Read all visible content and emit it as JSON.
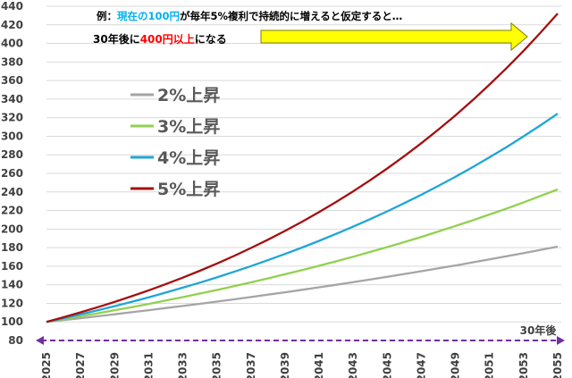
{
  "chart_data": {
    "type": "line",
    "x": [
      2025,
      2026,
      2027,
      2028,
      2029,
      2030,
      2031,
      2032,
      2033,
      2034,
      2035,
      2036,
      2037,
      2038,
      2039,
      2040,
      2041,
      2042,
      2043,
      2044,
      2045,
      2046,
      2047,
      2048,
      2049,
      2050,
      2051,
      2052,
      2053,
      2054,
      2055
    ],
    "xtick_labels": [
      "2025",
      "2027",
      "2029",
      "2031",
      "2033",
      "2035",
      "2037",
      "2039",
      "2041",
      "2043",
      "2045",
      "2047",
      "2049",
      "2051",
      "2053",
      "2055"
    ],
    "yticks": [
      80,
      100,
      120,
      140,
      160,
      180,
      200,
      220,
      240,
      260,
      280,
      300,
      320,
      340,
      360,
      380,
      400,
      420,
      440
    ],
    "ylim": [
      80,
      440
    ],
    "xlim": [
      2025,
      2055
    ],
    "grid": "horizontal",
    "title": "",
    "xlabel": "",
    "ylabel": "",
    "series": [
      {
        "name": "2%上昇",
        "color": "#a5a5a5",
        "values": [
          100,
          102,
          104,
          106.1,
          108.2,
          110.4,
          112.6,
          114.9,
          117.2,
          119.5,
          121.9,
          124.3,
          126.8,
          129.4,
          131.9,
          134.6,
          137.3,
          140,
          142.8,
          145.7,
          148.6,
          151.6,
          154.6,
          157.7,
          160.8,
          164.1,
          167.3,
          170.7,
          174.1,
          177.6,
          181.1
        ]
      },
      {
        "name": "3%上昇",
        "color": "#92d050",
        "values": [
          100,
          103,
          106.1,
          109.3,
          112.6,
          115.9,
          119.4,
          123,
          126.7,
          130.5,
          134.4,
          138.4,
          142.6,
          146.9,
          151.3,
          155.8,
          160.5,
          165.3,
          170.2,
          175.4,
          180.6,
          186,
          191.6,
          197.4,
          203.3,
          209.4,
          215.7,
          222.1,
          228.8,
          235.7,
          242.7
        ]
      },
      {
        "name": "4%上昇",
        "color": "#1fa5d8",
        "values": [
          100,
          104,
          108.2,
          112.5,
          117,
          121.7,
          126.5,
          131.6,
          136.9,
          142.3,
          148,
          153.9,
          160.1,
          166.5,
          173.2,
          180.1,
          187.3,
          194.8,
          202.6,
          210.7,
          219.1,
          227.9,
          237,
          246.5,
          256.3,
          266.6,
          277.3,
          288.3,
          299.9,
          311.9,
          324.3
        ]
      },
      {
        "name": "5%上昇",
        "color": "#a50f0f",
        "values": [
          100,
          105,
          110.3,
          115.8,
          121.6,
          127.6,
          134,
          140.7,
          147.7,
          155.1,
          162.9,
          171,
          179.6,
          188.6,
          198,
          207.9,
          218.3,
          229.2,
          240.7,
          252.7,
          265.3,
          278.6,
          292.5,
          307.2,
          322.5,
          338.6,
          355.7,
          373.4,
          392.1,
          411.7,
          432.2
        ]
      }
    ]
  },
  "annotation": {
    "line1_prefix": "例：",
    "line1_highlight": "現在の100円",
    "line1_suffix": "が毎年5%複利で持続的に増えると仮定すると…",
    "line2_prefix": "30年後に",
    "line2_highlight": "400円以上",
    "line2_suffix": "になる",
    "highlight_color_1": "#00b0f0",
    "highlight_color_2": "#ff0000",
    "arrow_color": "#ffff00",
    "arrow_stroke": "#7f7f00"
  },
  "span_label": "30年後",
  "span_color": "#7030a0"
}
